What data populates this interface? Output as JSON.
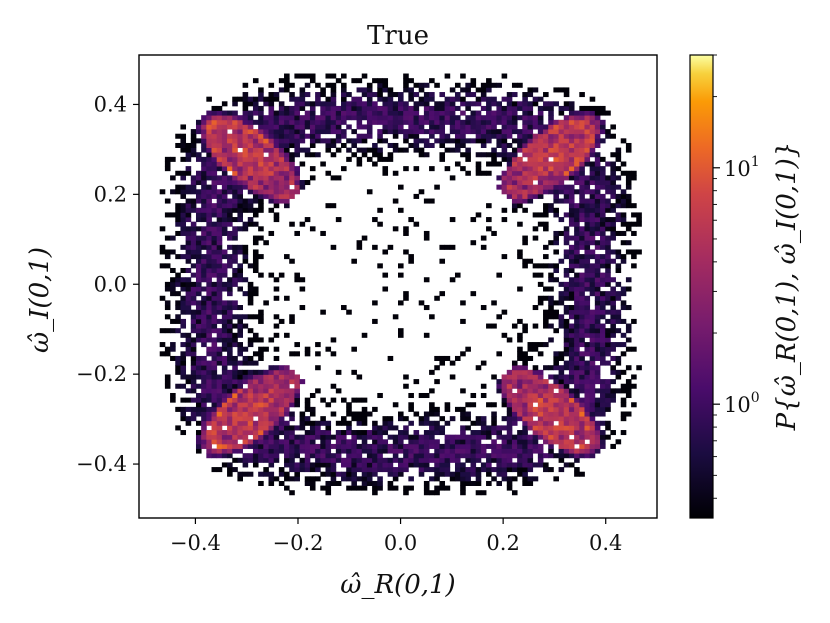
{
  "chart_data": {
    "type": "heatmap",
    "title": "True",
    "xlabel": "ω̂_R(0,1)",
    "ylabel": "ω̂_I(0,1)",
    "colorbar_label": "P{ω̂_R(0,1), ω̂_I(0,1)}",
    "xlim": [
      -0.51,
      0.5
    ],
    "ylim": [
      -0.52,
      0.51
    ],
    "x_ticks": [
      -0.4,
      -0.2,
      0.0,
      0.2,
      0.4
    ],
    "x_tick_labels": [
      "−0.4",
      "−0.2",
      "0.0",
      "0.2",
      "0.4"
    ],
    "y_ticks": [
      -0.4,
      -0.2,
      0.0,
      0.2,
      0.4
    ],
    "y_tick_labels": [
      "−0.4",
      "−0.2",
      "0.0",
      "0.2",
      "0.4"
    ],
    "colorbar": {
      "scale": "log",
      "range": [
        0.33,
        30
      ],
      "colormap": "inferno",
      "tick_labels": [
        {
          "base": "10",
          "exp": "0",
          "value": 1
        },
        {
          "base": "10",
          "exp": "1",
          "value": 10
        }
      ]
    },
    "bins": 100,
    "blobs": [
      {
        "cx": -0.29,
        "cy": 0.28,
        "angle_deg": -45
      },
      {
        "cx": 0.29,
        "cy": 0.28,
        "angle_deg": 45
      },
      {
        "cx": -0.29,
        "cy": -0.28,
        "angle_deg": 45
      },
      {
        "cx": 0.29,
        "cy": -0.28,
        "angle_deg": -45
      }
    ],
    "colors": {
      "axis": "#000000",
      "background": "#ffffff"
    }
  }
}
